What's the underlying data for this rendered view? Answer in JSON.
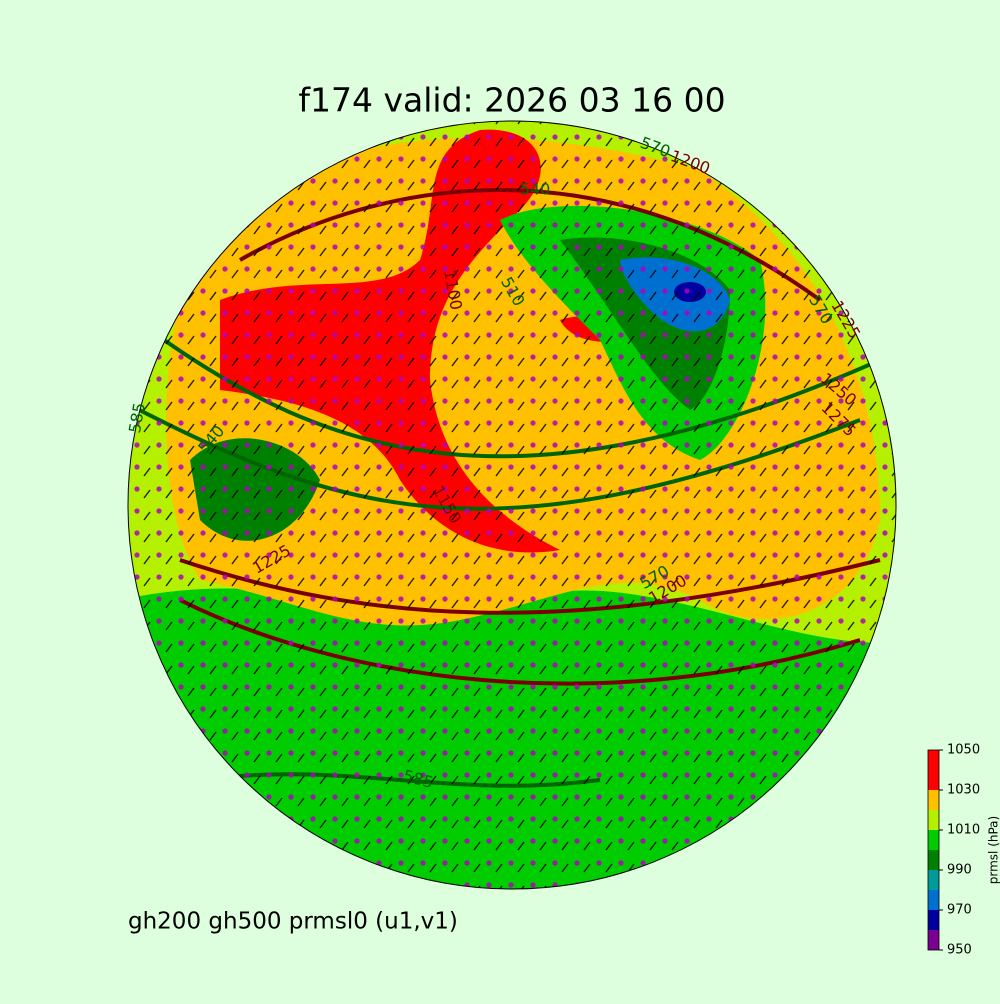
{
  "title": "f174 valid:   2026 03 16 00",
  "subtitle": "gh200 gh500 prmsl0 (u1,v1)",
  "colorbar": {
    "label": "prmsl (hPa)",
    "ticks": [
      950,
      970,
      990,
      1010,
      1030,
      1050
    ],
    "levels": [
      950,
      960,
      970,
      980,
      990,
      1000,
      1010,
      1020,
      1030,
      1050
    ],
    "colors": [
      "#7a0090",
      "#0000a0",
      "#0070d0",
      "#009a9a",
      "#008000",
      "#00cc00",
      "#b4f000",
      "#ffc000",
      "#ff0000"
    ]
  },
  "contour_labels": [
    "570",
    "1200",
    "540",
    "510",
    "1100",
    "585",
    "540",
    "1225",
    "1150",
    "570",
    "1200",
    "1275",
    "585",
    "1225",
    "1250",
    "570"
  ]
}
